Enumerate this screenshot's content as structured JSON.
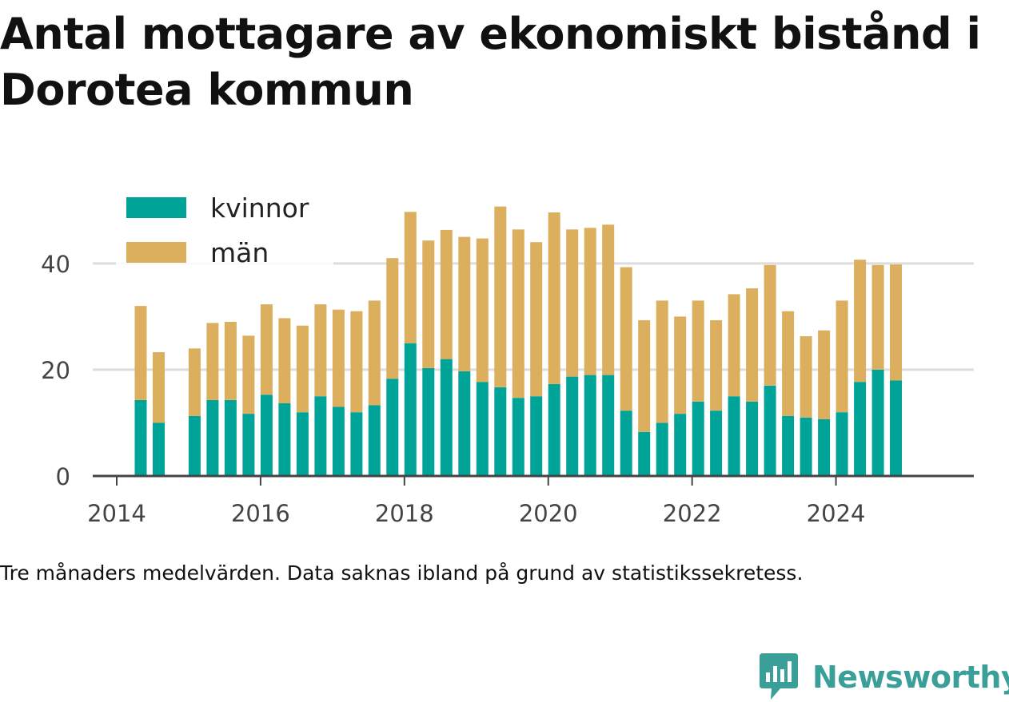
{
  "title": "Antal mottagare av ekonomiskt bistånd i Dorotea kommun",
  "caption": "Tre månaders medelvärden. Data saknas ibland på grund av statistikssekretess.",
  "brand": {
    "name": "Newsworthy",
    "color": "#3a9f98"
  },
  "chart_data": {
    "type": "bar",
    "stacked": true,
    "title": "Antal mottagare av ekonomiskt bistånd i Dorotea kommun",
    "xlabel": "",
    "ylabel": "",
    "ylim": [
      0,
      52
    ],
    "yticks": [
      0,
      20,
      40
    ],
    "xlim": [
      "2013-09",
      "2025-12"
    ],
    "xticks": [
      "2014",
      "2016",
      "2018",
      "2020",
      "2022",
      "2024"
    ],
    "grid": true,
    "legend_position": "top-left",
    "x": [
      "2014-05",
      "2014-08",
      "2015-02",
      "2015-05",
      "2015-08",
      "2015-11",
      "2016-02",
      "2016-05",
      "2016-08",
      "2016-11",
      "2017-02",
      "2017-05",
      "2017-08",
      "2017-11",
      "2018-02",
      "2018-05",
      "2018-08",
      "2018-11",
      "2019-02",
      "2019-05",
      "2019-08",
      "2019-11",
      "2020-02",
      "2020-05",
      "2020-08",
      "2020-11",
      "2021-02",
      "2021-05",
      "2021-08",
      "2021-11",
      "2022-02",
      "2022-05",
      "2022-08",
      "2022-11",
      "2023-02",
      "2023-05",
      "2023-08",
      "2023-11",
      "2024-02",
      "2024-05",
      "2024-08",
      "2024-11"
    ],
    "series": [
      {
        "name": "kvinnor",
        "color": "#00a398",
        "values": [
          14.3,
          10,
          11.3,
          14.3,
          14.3,
          11.7,
          15.3,
          13.7,
          12,
          15,
          13,
          12,
          13.3,
          18.3,
          25,
          20.3,
          22,
          19.7,
          17.7,
          16.7,
          14.7,
          15,
          17.3,
          18.7,
          19,
          19,
          12.3,
          8.3,
          10,
          11.7,
          14,
          12.3,
          15,
          14,
          17,
          11.3,
          11,
          10.7,
          12,
          17.7,
          20,
          18
        ]
      },
      {
        "name": "män",
        "color": "#dbaf5d",
        "values": [
          17.7,
          13.3,
          12.7,
          14.5,
          14.7,
          14.7,
          17,
          16,
          16.3,
          17.3,
          18.3,
          19,
          19.7,
          22.7,
          24.7,
          24,
          24.3,
          25.3,
          27,
          34,
          31.7,
          29,
          32.3,
          27.7,
          27.7,
          28.3,
          27,
          21,
          23,
          18.3,
          19,
          17,
          19.2,
          21.3,
          22.7,
          19.7,
          15.3,
          16.7,
          21,
          23,
          19.7,
          21.8
        ]
      }
    ]
  }
}
